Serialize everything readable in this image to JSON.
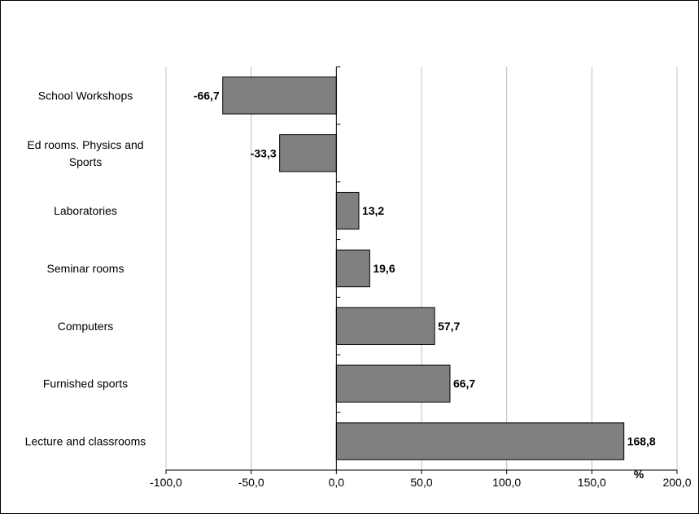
{
  "chart_data": {
    "type": "bar",
    "orientation": "horizontal",
    "categories": [
      "School Workshops",
      "Ed rooms. Physics and Sports",
      "Laboratories",
      "Seminar rooms",
      "Computers",
      "Furnished sports",
      "Lecture and classrooms"
    ],
    "category_lines": [
      [
        "School Workshops"
      ],
      [
        "Ed rooms. Physics and",
        "Sports"
      ],
      [
        "Laboratories"
      ],
      [
        "Seminar rooms"
      ],
      [
        "Computers"
      ],
      [
        "Furnished sports"
      ],
      [
        "Lecture and classrooms"
      ]
    ],
    "values": [
      -66.7,
      -33.3,
      13.2,
      19.6,
      57.7,
      66.7,
      168.8
    ],
    "value_labels": [
      "-66,7",
      "-33,3",
      "13,2",
      "19,6",
      "57,7",
      "66,7",
      "168,8"
    ],
    "xlim": [
      -100,
      200
    ],
    "x_ticks": [
      -100,
      -50,
      0,
      50,
      100,
      150,
      200
    ],
    "x_tick_labels": [
      "-100,0",
      "-50,0",
      "0,0",
      "50,0",
      "100,0",
      "150,0",
      "200,0"
    ],
    "xlabel": "%",
    "title": "",
    "grid": "vertical",
    "legend": "none",
    "colors": {
      "bar": "#808080",
      "bar_border": "#000000",
      "grid": "#c0c0c0",
      "axis": "#000000"
    }
  }
}
